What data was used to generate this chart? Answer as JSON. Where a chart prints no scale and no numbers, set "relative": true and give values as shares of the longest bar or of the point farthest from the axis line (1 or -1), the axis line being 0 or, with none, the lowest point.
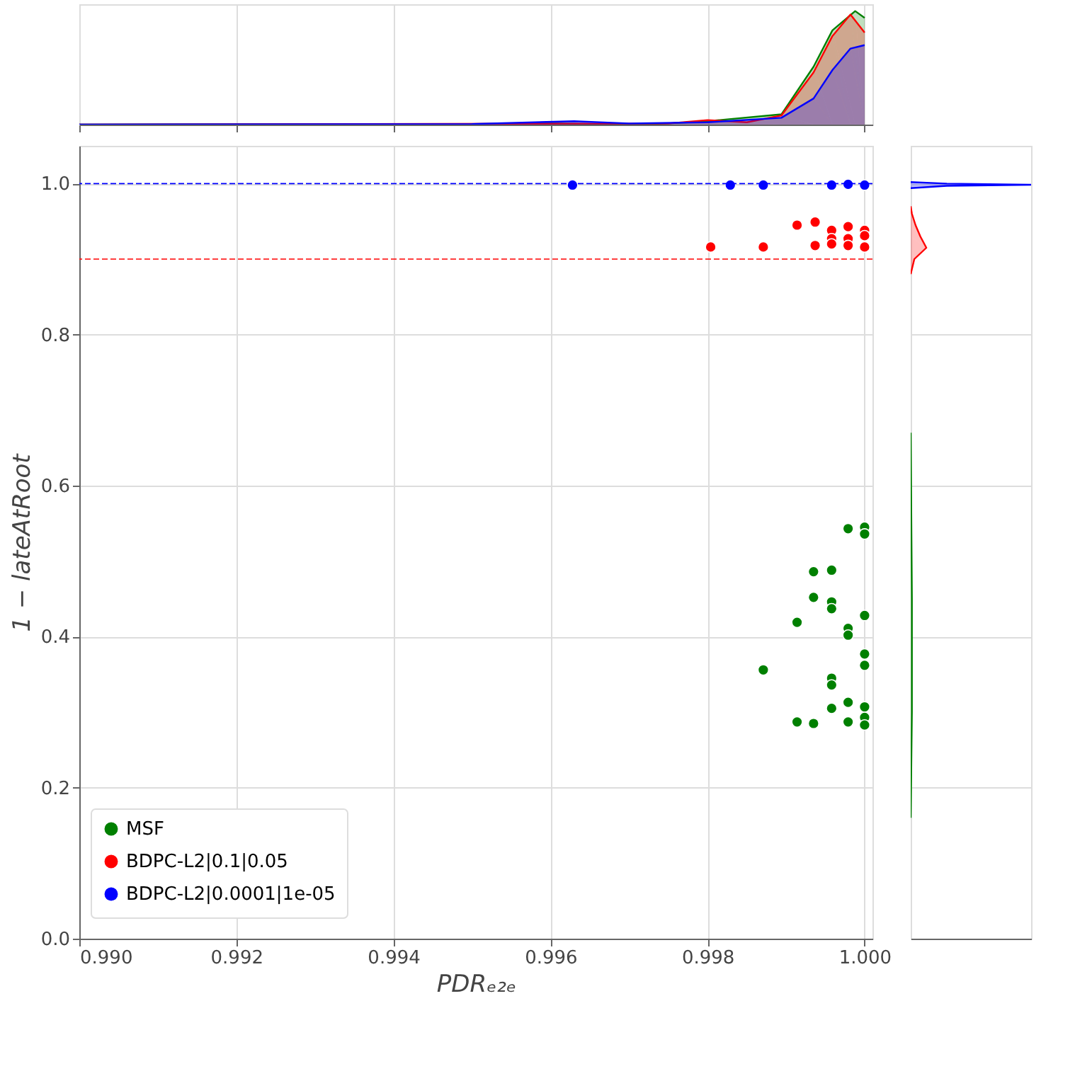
{
  "chart_data": [
    {
      "type": "area",
      "relative": true,
      "xlim": [
        0.99,
        1.0001
      ],
      "xticks": [
        0.99,
        0.992,
        0.994,
        0.996,
        0.998,
        1.0
      ],
      "tick_labels": false,
      "grid": "x",
      "series": [
        {
          "color": "#008000",
          "x": [
            0.99,
            0.995,
            0.996,
            0.997,
            0.9975,
            0.998,
            0.99894,
            0.99935,
            0.99959,
            0.99988,
            1.0
          ],
          "values": [
            0,
            0.005,
            0.01,
            0,
            0.01,
            0.03,
            0.09,
            0.51,
            0.83,
            1.0,
            0.94
          ]
        },
        {
          "color": "#ff0000",
          "x": [
            0.99,
            0.9975,
            0.998,
            0.9985,
            0.99894,
            0.99935,
            0.99959,
            0.99982,
            1.0
          ],
          "values": [
            0,
            0.01,
            0.04,
            0.02,
            0.08,
            0.46,
            0.78,
            0.97,
            0.81
          ]
        },
        {
          "color": "#0000ff",
          "x": [
            0.99,
            0.995,
            0.9963,
            0.997,
            0.998,
            0.99894,
            0.99935,
            0.99959,
            0.99982,
            1.0
          ],
          "values": [
            0,
            0.005,
            0.03,
            0.01,
            0.02,
            0.06,
            0.23,
            0.48,
            0.67,
            0.7
          ]
        }
      ]
    },
    {
      "type": "scatter",
      "xlabel": "PDRₑ₂ₑ",
      "ylabel": "1 − lateAtRoot",
      "xlim": [
        0.99,
        1.0001
      ],
      "ylim": [
        0,
        1.05
      ],
      "xticks": [
        {
          "value": 0.99,
          "label": "0.990"
        },
        {
          "value": 0.992,
          "label": "0.992"
        },
        {
          "value": 0.994,
          "label": "0.994"
        },
        {
          "value": 0.996,
          "label": "0.996"
        },
        {
          "value": 0.998,
          "label": "0.998"
        },
        {
          "value": 1.0,
          "label": "1.000"
        }
      ],
      "yticks": [
        {
          "value": 0.0,
          "label": "0.0"
        },
        {
          "value": 0.2,
          "label": "0.2"
        },
        {
          "value": 0.4,
          "label": "0.4"
        },
        {
          "value": 0.6,
          "label": "0.6"
        },
        {
          "value": 0.8,
          "label": "0.8"
        },
        {
          "value": 1.0,
          "label": "1.0"
        }
      ],
      "grid": true,
      "legend": "bottom left",
      "marker": "circle",
      "ref_lines": [
        {
          "axis": "y",
          "value": 1.0,
          "color": "#0000ff",
          "line_style": "dashed"
        },
        {
          "axis": "y",
          "value": 0.9,
          "color": "#ff0000",
          "line_style": "dashed"
        }
      ],
      "series": [
        {
          "name": "MSF",
          "color": "#008000",
          "x": [
            0.99979,
            1.0,
            1.0,
            0.99935,
            0.99958,
            0.99935,
            0.99958,
            0.99958,
            0.99914,
            1.0,
            0.99979,
            0.99979,
            0.99871,
            1.0,
            1.0,
            0.99958,
            0.99958,
            0.99958,
            0.99979,
            1.0,
            0.99914,
            0.99935,
            0.99979,
            1.0,
            1.0
          ],
          "values": [
            0.543,
            0.545,
            0.536,
            0.486,
            0.488,
            0.452,
            0.446,
            0.437,
            0.419,
            0.428,
            0.411,
            0.402,
            0.356,
            0.377,
            0.362,
            0.345,
            0.336,
            0.305,
            0.313,
            0.307,
            0.287,
            0.285,
            0.287,
            0.293,
            0.283
          ]
        },
        {
          "name": "BDPC-L2|0.1|0.05",
          "color": "#ff0000",
          "x": [
            0.99804,
            0.99871,
            0.99914,
            0.99937,
            0.99937,
            0.99958,
            0.99958,
            0.99958,
            0.99979,
            0.99979,
            0.99979,
            1.0,
            1.0,
            1.0
          ],
          "values": [
            0.916,
            0.916,
            0.945,
            0.949,
            0.918,
            0.938,
            0.927,
            0.92,
            0.943,
            0.927,
            0.918,
            0.938,
            0.931,
            0.916
          ]
        },
        {
          "name": "BDPC-L2|0.0001|1e-05",
          "color": "#0000ff",
          "x": [
            0.99628,
            0.99829,
            0.99871,
            0.99958,
            0.99979,
            1.0
          ],
          "values": [
            0.998,
            0.998,
            0.998,
            0.998,
            0.999,
            0.998
          ]
        }
      ]
    },
    {
      "type": "area",
      "orientation": "horizontal",
      "relative": true,
      "ylim": [
        0,
        1.05
      ],
      "yticks": [
        0.0,
        0.2,
        0.4,
        0.6,
        0.8,
        1.0
      ],
      "tick_labels": false,
      "grid": "y",
      "series": [
        {
          "color": "#008000",
          "x": [
            0.16,
            0.3,
            0.45,
            0.67
          ],
          "values": [
            0,
            0.01,
            0.01,
            0
          ]
        },
        {
          "color": "#ff0000",
          "x": [
            0.88,
            0.9,
            0.915,
            0.93,
            0.945,
            0.96,
            0.97
          ],
          "values": [
            0,
            0.03,
            0.13,
            0.08,
            0.04,
            0.01,
            0
          ]
        },
        {
          "color": "#0000ff",
          "x": [
            0.994,
            0.997,
            0.9985,
            1.0,
            1.002
          ],
          "values": [
            0,
            0.3,
            1,
            0.3,
            0
          ]
        }
      ]
    }
  ]
}
